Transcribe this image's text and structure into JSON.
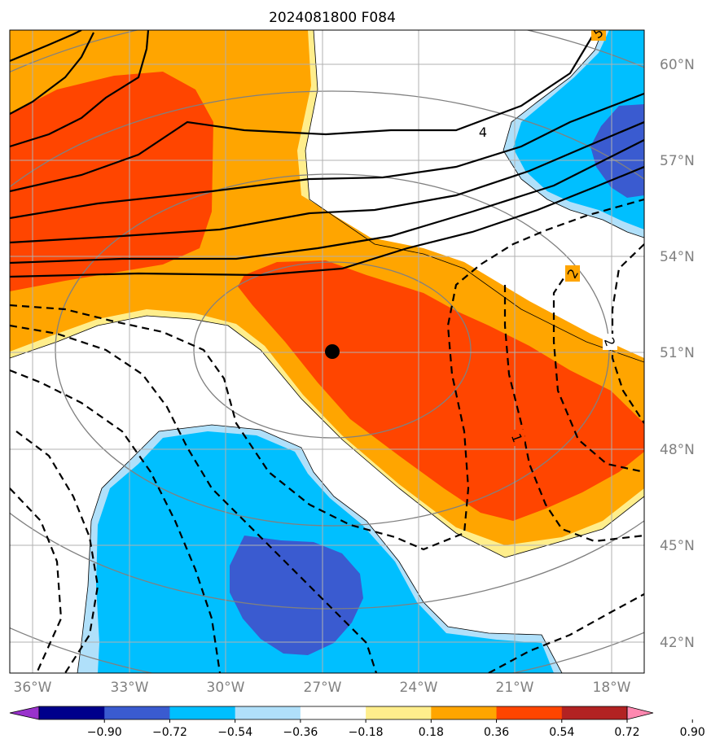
{
  "title": "2024081800 F084",
  "map": {
    "lon_ticks": [
      "36°W",
      "33°W",
      "30°W",
      "27°W",
      "24°W",
      "21°W",
      "18°W"
    ],
    "lat_ticks": [
      "60°N",
      "57°N",
      "54°N",
      "51°N",
      "48°N",
      "45°N",
      "42°N"
    ],
    "gridlines": true,
    "center_marker": "black-dot",
    "contour_labels": [
      "5",
      "4",
      "2",
      "2",
      "1"
    ]
  },
  "colorbar": {
    "ticks": [
      "−0.90",
      "−0.72",
      "−0.54",
      "−0.36",
      "−0.18",
      "0.18",
      "0.36",
      "0.54",
      "0.72",
      "0.90"
    ],
    "colors": [
      "#9932cc",
      "#00008b",
      "#3a5bd0",
      "#00bfff",
      "#b0e0fa",
      "#ffffff",
      "#ffee8c",
      "#ffa500",
      "#ff4500",
      "#b22222",
      "#ff88b0"
    ],
    "extend": "both"
  },
  "colors": {
    "strong_pos": "#ff4500",
    "pos": "#ffa500",
    "weak_pos": "#ffee8c",
    "weak_neg": "#b0e0fa",
    "neg": "#00bfff",
    "strong_neg": "#3a5bd0",
    "grid": "#b0b0b0",
    "tick": "#808080"
  }
}
